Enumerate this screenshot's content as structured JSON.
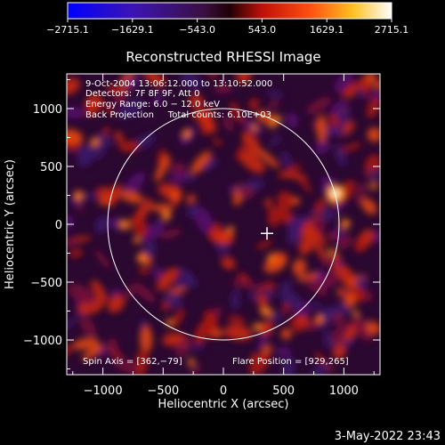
{
  "chart_data": {
    "type": "heatmap",
    "title": "Reconstructed RHESSI Image",
    "xlabel": "Heliocentric X (arcsec)",
    "ylabel": "Heliocentric Y (arcsec)",
    "xlim": [
      -1300,
      1300
    ],
    "ylim": [
      -1300,
      1300
    ],
    "xticks": [
      -1000,
      -500,
      0,
      500,
      1000
    ],
    "yticks": [
      -1000,
      -500,
      0,
      500,
      1000
    ],
    "xtick_labels": [
      "−1000",
      "−500",
      "0",
      "500",
      "1000"
    ],
    "ytick_labels": [
      "−1000",
      "−500",
      "0",
      "500",
      "1000"
    ],
    "colorbar": {
      "min": -2715.1,
      "max": 2715.1,
      "ticks": [
        -2715.1,
        -1629.1,
        -543.0,
        543.0,
        1629.1,
        2715.1
      ],
      "tick_labels": [
        "−2715.1",
        "−1629.1",
        "−543.0",
        "543.0",
        "1629.1",
        "2715.1"
      ],
      "colormap": "blue-purple-red-yellow-white"
    },
    "info_lines": [
      "9‑Oct‑2004 13:06:12.000 to 13:10:52.000",
      "Detectors: 7F 8F 9F, Att 0",
      "Energy Range: 6.0 − 12.0 keV",
      "Back Projection     Total counts: 6.10E+03"
    ],
    "spin_axis": "Spin Axis = [362,−79]",
    "flare_position": "Flare Position = [929,265]",
    "spin_axis_xy": [
      362,
      -79
    ],
    "flare_xy": [
      929,
      265
    ],
    "solar_radius_arcsec": 960,
    "timestamp": "3‑May‑2022 23:43",
    "colors": {
      "background": "#000000",
      "limb": "#ffffff",
      "text": "#ffffff"
    }
  }
}
